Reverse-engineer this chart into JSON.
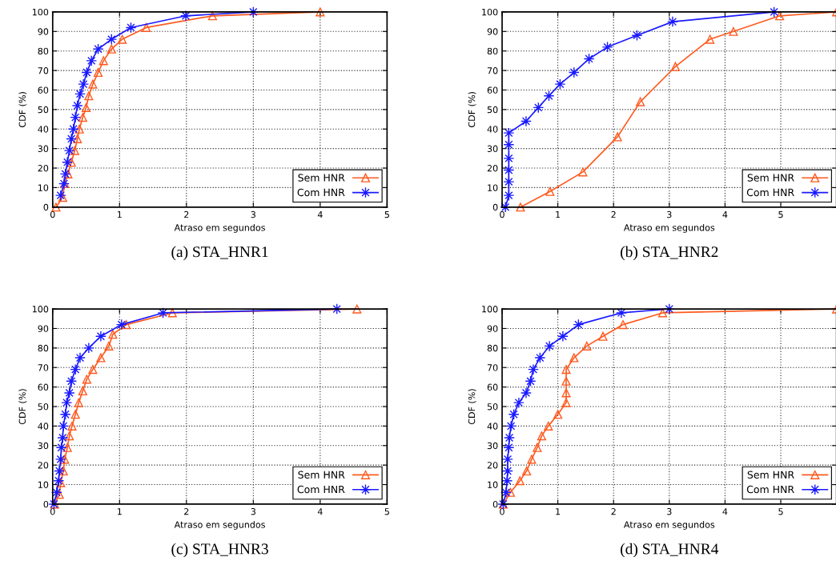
{
  "chart_data": [
    {
      "type": "line",
      "title": "(a) STA_HNR1",
      "xlabel": "Atraso em segundos",
      "ylabel": "CDF (%)",
      "xlim": [
        0,
        5
      ],
      "xticks": [
        0,
        1,
        2,
        3,
        4,
        5
      ],
      "ylim": [
        0,
        100
      ],
      "yticks": [
        0,
        10,
        20,
        30,
        40,
        50,
        60,
        70,
        80,
        90,
        100
      ],
      "grid": true,
      "legend": "bottom right",
      "line_style": "solid",
      "series": [
        {
          "name": "Sem HNR",
          "color": "#ff5a1f",
          "marker": "triangle",
          "x": [
            0.05,
            0.15,
            0.18,
            0.23,
            0.28,
            0.33,
            0.37,
            0.4,
            0.45,
            0.5,
            0.54,
            0.6,
            0.68,
            0.76,
            0.88,
            1.04,
            1.4,
            2.39,
            4.0
          ],
          "values": [
            0,
            5,
            12,
            17,
            23,
            29,
            35,
            40,
            46,
            51,
            57,
            63,
            69,
            75,
            81,
            86,
            92,
            98,
            100
          ]
        },
        {
          "name": "Com HNR",
          "color": "#1a1aff",
          "marker": "star",
          "x": [
            0.12,
            0.17,
            0.19,
            0.22,
            0.25,
            0.28,
            0.31,
            0.34,
            0.37,
            0.41,
            0.46,
            0.51,
            0.58,
            0.68,
            0.88,
            1.17,
            1.99,
            3.0
          ],
          "values": [
            6,
            12,
            17,
            23,
            29,
            35,
            40,
            46,
            52,
            58,
            63,
            69,
            75,
            81,
            86,
            92,
            98,
            100
          ]
        }
      ]
    },
    {
      "type": "line",
      "title": "(b) STA_HNR2",
      "xlabel": "Atraso em segundos",
      "ylabel": "CDF (%)",
      "xlim": [
        0,
        6
      ],
      "xticks": [
        0,
        1,
        2,
        3,
        4,
        5
      ],
      "ylim": [
        0,
        100
      ],
      "yticks": [
        0,
        10,
        20,
        30,
        40,
        50,
        60,
        70,
        80,
        90,
        100
      ],
      "grid": true,
      "legend": "bottom right",
      "line_style": "solid",
      "series": [
        {
          "name": "Sem HNR",
          "color": "#ff5a1f",
          "marker": "triangle",
          "x": [
            0.33,
            0.86,
            1.45,
            2.07,
            2.48,
            3.11,
            3.73,
            4.15,
            4.98,
            6.0
          ],
          "values": [
            0,
            8,
            18,
            36,
            54,
            72,
            86,
            90,
            98,
            100
          ]
        },
        {
          "name": "Com HNR",
          "color": "#1a1aff",
          "marker": "star",
          "x": [
            0.06,
            0.12,
            0.12,
            0.12,
            0.12,
            0.12,
            0.12,
            0.43,
            0.65,
            0.84,
            1.04,
            1.29,
            1.56,
            1.89,
            2.42,
            3.06,
            4.88
          ],
          "values": [
            0,
            6,
            13,
            19,
            25,
            32,
            38,
            44,
            51,
            57,
            63,
            69,
            76,
            82,
            88,
            95,
            100
          ]
        }
      ]
    },
    {
      "type": "line",
      "title": "(c) STA_HNR3",
      "xlabel": "Atraso em segundos",
      "ylabel": "CDF (%)",
      "xlim": [
        0,
        5
      ],
      "xticks": [
        0,
        1,
        2,
        3,
        4,
        5
      ],
      "ylim": [
        0,
        100
      ],
      "yticks": [
        0,
        10,
        20,
        30,
        40,
        50,
        60,
        70,
        80,
        90,
        100
      ],
      "grid": true,
      "legend": "bottom right",
      "line_style": "solid",
      "series": [
        {
          "name": "Sem HNR",
          "color": "#ff5a1f",
          "marker": "triangle",
          "x": [
            0.03,
            0.1,
            0.12,
            0.16,
            0.18,
            0.22,
            0.25,
            0.29,
            0.34,
            0.39,
            0.45,
            0.51,
            0.6,
            0.72,
            0.84,
            0.9,
            1.1,
            1.79,
            4.55
          ],
          "values": [
            0,
            5,
            11,
            17,
            23,
            29,
            35,
            40,
            46,
            52,
            58,
            64,
            69,
            75,
            81,
            87,
            92,
            98,
            100
          ]
        },
        {
          "name": "Com HNR",
          "color": "#1a1aff",
          "marker": "star",
          "x": [
            0.02,
            0.06,
            0.09,
            0.1,
            0.12,
            0.13,
            0.15,
            0.16,
            0.19,
            0.21,
            0.25,
            0.28,
            0.34,
            0.41,
            0.54,
            0.72,
            1.03,
            1.65,
            4.25
          ],
          "values": [
            0,
            6,
            12,
            17,
            23,
            29,
            34,
            40,
            46,
            52,
            57,
            63,
            69,
            75,
            80,
            86,
            92,
            98,
            100
          ]
        }
      ]
    },
    {
      "type": "line",
      "title": "(d) STA_HNR4",
      "xlabel": "Atraso em segundos",
      "ylabel": "CDF (%)",
      "xlim": [
        0,
        6
      ],
      "xticks": [
        0,
        1,
        2,
        3,
        4,
        5
      ],
      "ylim": [
        0,
        100
      ],
      "yticks": [
        0,
        10,
        20,
        30,
        40,
        50,
        60,
        70,
        80,
        90,
        100
      ],
      "grid": true,
      "legend": "bottom right",
      "line_style": "solid",
      "series": [
        {
          "name": "Sem HNR",
          "color": "#ff5a1f",
          "marker": "triangle",
          "x": [
            0.02,
            0.15,
            0.32,
            0.44,
            0.53,
            0.63,
            0.71,
            0.83,
            1.0,
            1.15,
            1.15,
            1.15,
            1.15,
            1.29,
            1.52,
            1.81,
            2.17,
            2.88,
            6.0
          ],
          "values": [
            0,
            6,
            12,
            17,
            23,
            29,
            35,
            40,
            46,
            52,
            57,
            63,
            69,
            75,
            81,
            86,
            92,
            98,
            100
          ]
        },
        {
          "name": "Com HNR",
          "color": "#1a1aff",
          "marker": "star",
          "x": [
            0.02,
            0.07,
            0.09,
            0.1,
            0.1,
            0.12,
            0.13,
            0.16,
            0.21,
            0.3,
            0.43,
            0.51,
            0.56,
            0.68,
            0.85,
            1.09,
            1.37,
            2.14,
            3.0
          ],
          "values": [
            0,
            6,
            12,
            17,
            23,
            29,
            34,
            40,
            46,
            52,
            57,
            63,
            69,
            75,
            81,
            86,
            92,
            98,
            100
          ]
        }
      ]
    }
  ]
}
